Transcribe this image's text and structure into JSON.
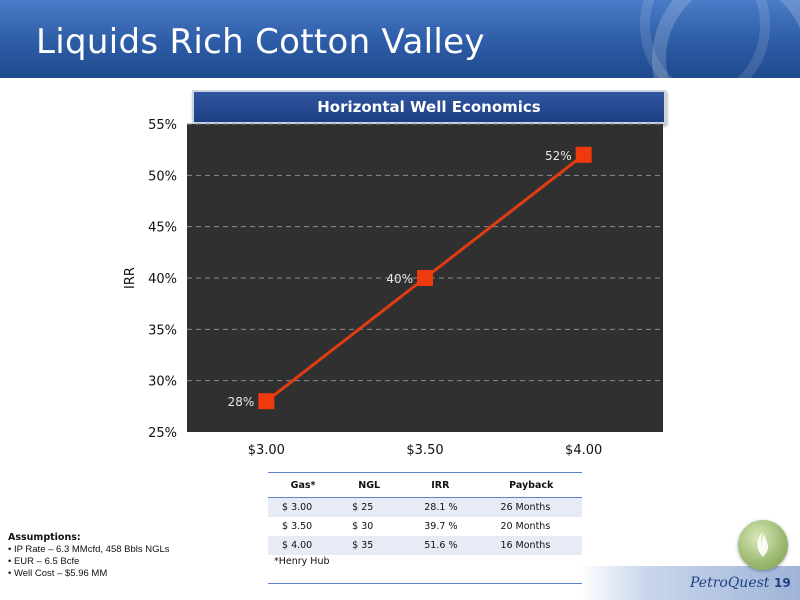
{
  "page": {
    "title": "Liquids Rich Cotton Valley",
    "page_number": "19",
    "logo_text": "PetroQuest"
  },
  "chart_data": {
    "type": "line",
    "title": "Horizontal Well Economics",
    "categories": [
      "$3.00",
      "$3.50",
      "$4.00"
    ],
    "values": [
      28,
      40,
      52
    ],
    "data_labels": [
      "28%",
      "40%",
      "52%"
    ],
    "xlabel": "",
    "ylabel": "IRR",
    "ylim": [
      25,
      55
    ],
    "yticks": [
      "25%",
      "30%",
      "35%",
      "40%",
      "45%",
      "50%",
      "55%"
    ],
    "grid": true,
    "colors": {
      "line": "#e03c12",
      "marker": "#ee3a0c",
      "plot_bg": "#303030",
      "grid": "#8a8a8a"
    }
  },
  "table": {
    "headers": [
      "Gas*",
      "NGL",
      "IRR",
      "Payback"
    ],
    "rows": [
      [
        "$ 3.00",
        "$ 25",
        "28.1 %",
        "26 Months"
      ],
      [
        "$ 3.50",
        "$ 30",
        "39.7 %",
        "20 Months"
      ],
      [
        "$ 4.00",
        "$ 35",
        "51.6 %",
        "16 Months"
      ]
    ],
    "note": "*Henry Hub"
  },
  "assumptions": {
    "heading": "Assumptions:",
    "items": [
      "• IP Rate – 6.3 MMcfd, 458 Bbls NGLs",
      "• EUR – 6.5 Bcfe",
      "• Well Cost – $5.96 MM"
    ]
  }
}
